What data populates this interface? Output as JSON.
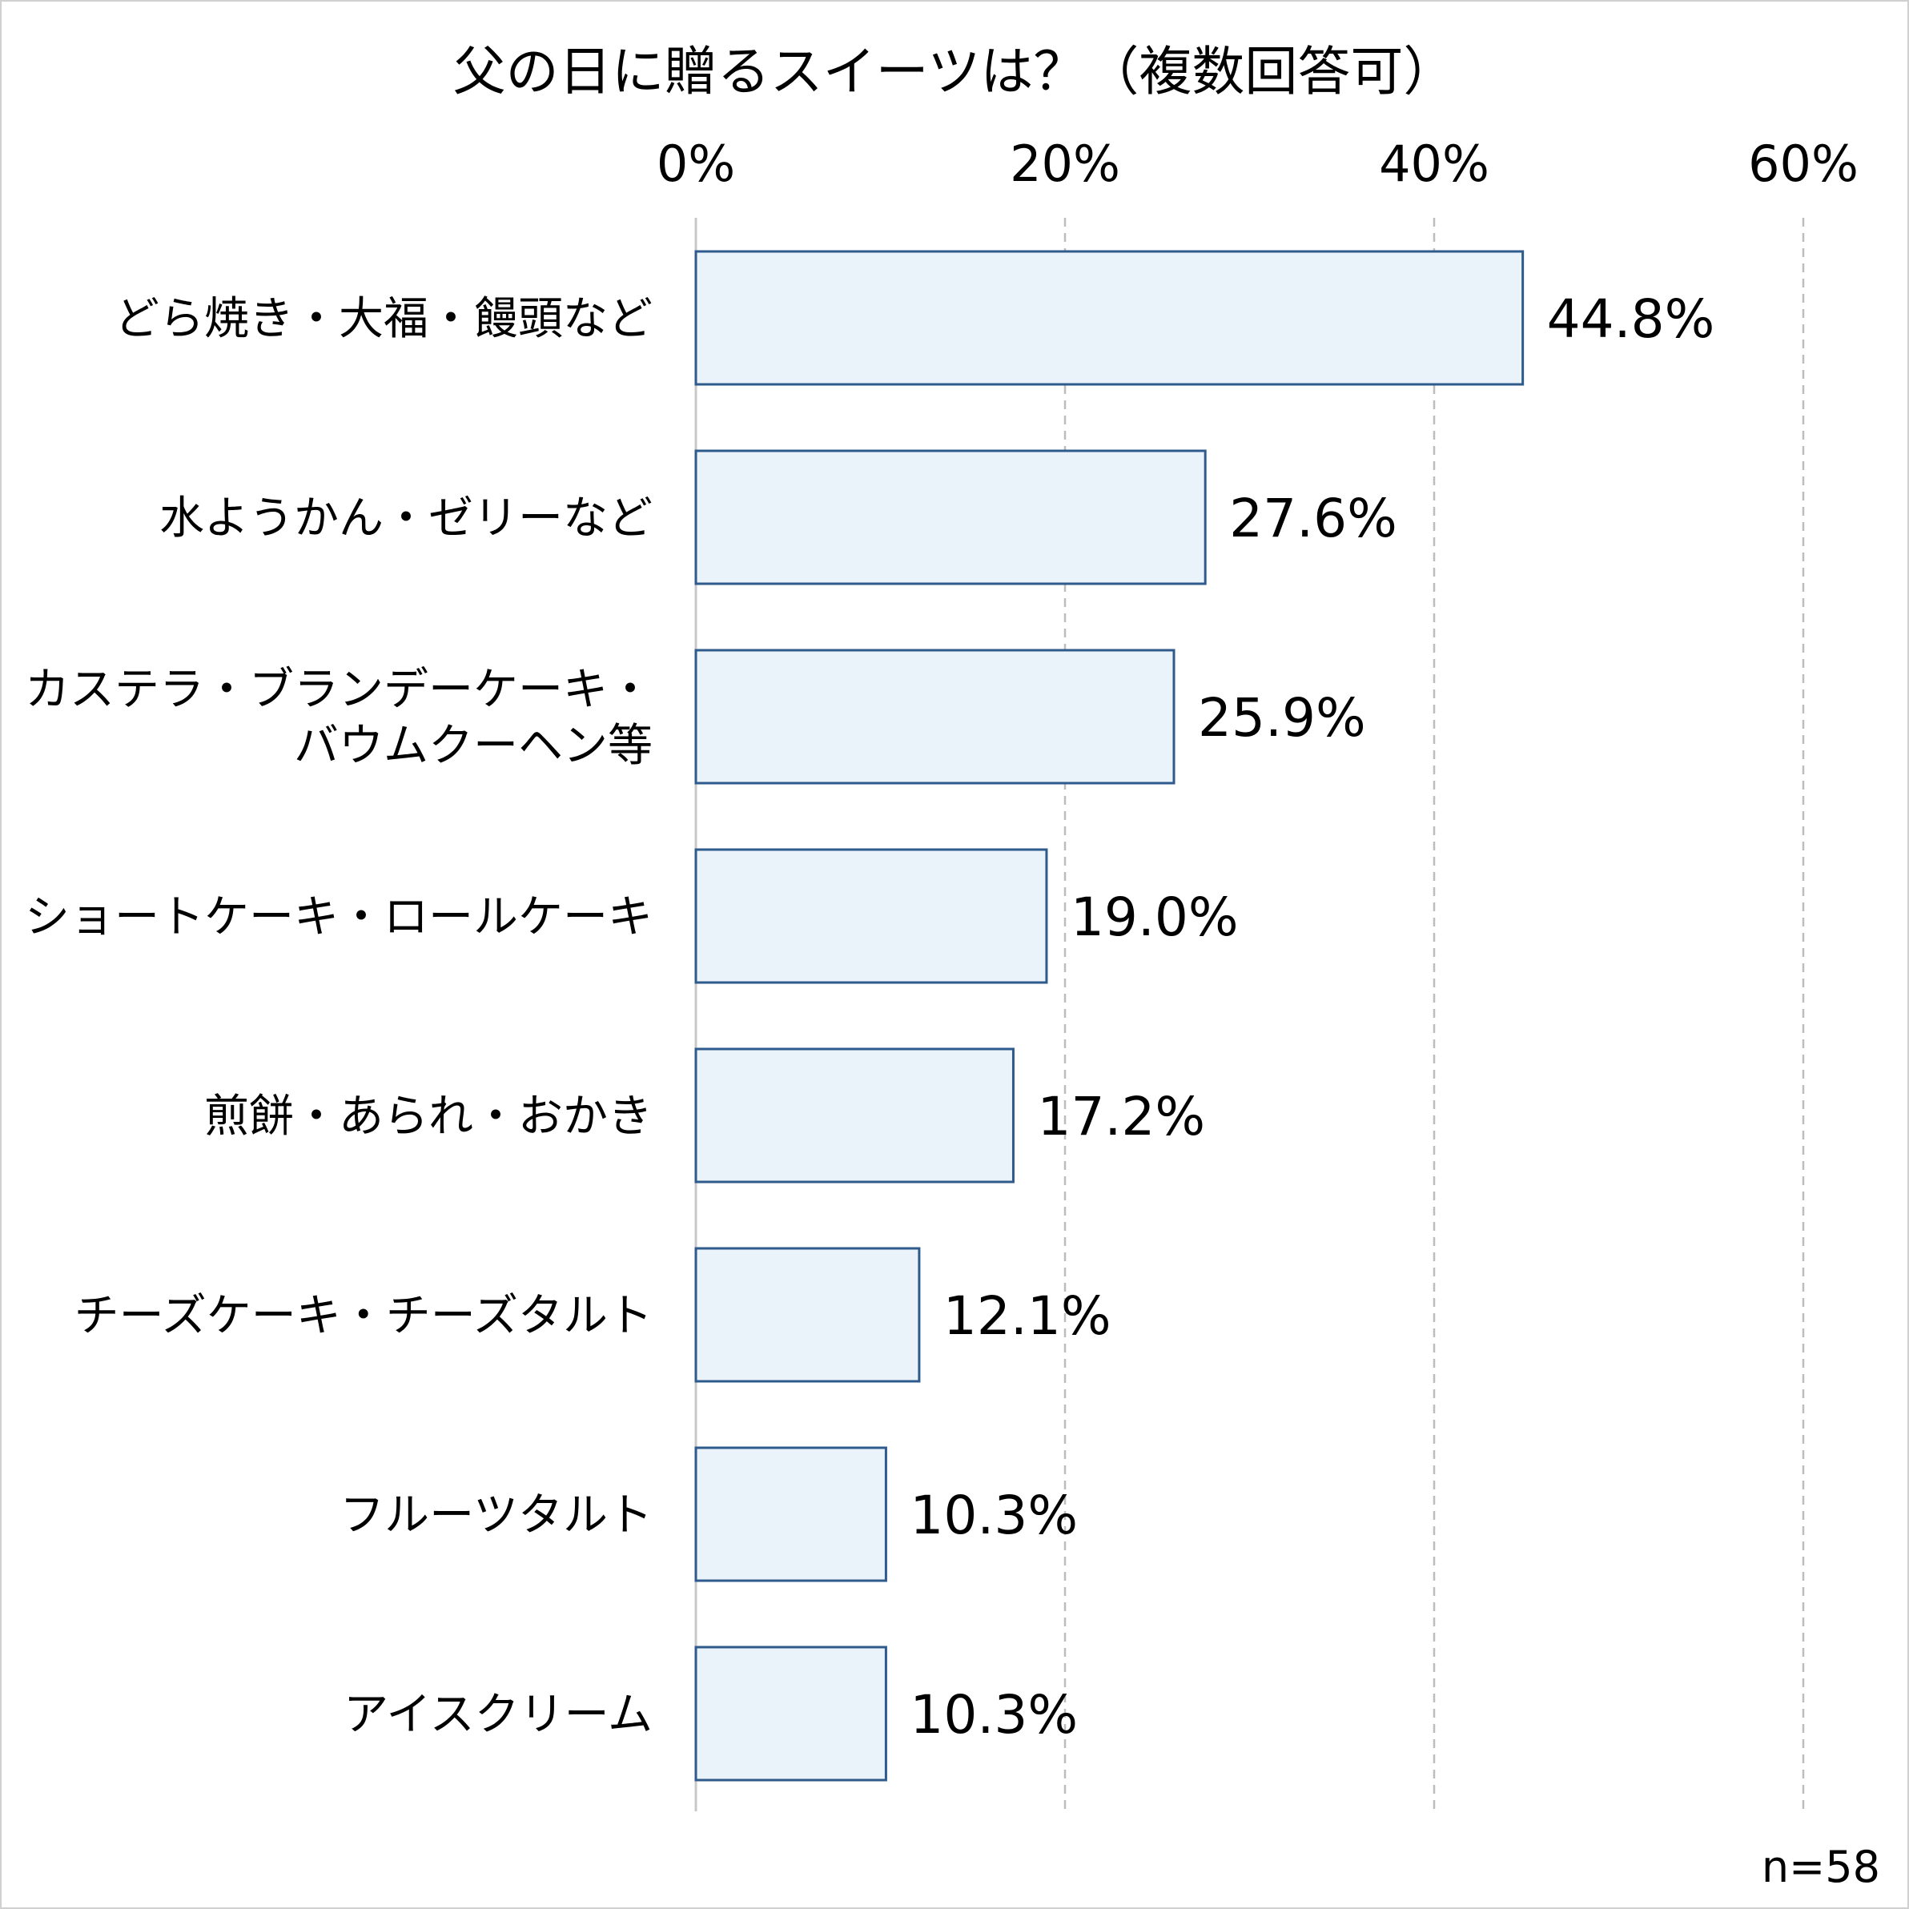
{
  "chart_data": {
    "type": "bar",
    "orientation": "horizontal",
    "title": "父の日に贈るスイーツは？（複数回答可）",
    "xlim": [
      0,
      60
    ],
    "ticks": [
      "0%",
      "20%",
      "40%",
      "60%"
    ],
    "tick_values": [
      0,
      20,
      40,
      60
    ],
    "grid": true,
    "categories": [
      [
        "どら焼き・大福・饅頭など"
      ],
      [
        "水ようかん・ゼリーなど"
      ],
      [
        "カステラ・ブランデーケーキ・",
        "バウムクーヘン等"
      ],
      [
        "ショートケーキ・ロールケーキ"
      ],
      [
        "煎餅・あられ・おかき"
      ],
      [
        "チーズケーキ・チーズタルト"
      ],
      [
        "フルーツタルト"
      ],
      [
        "アイスクリーム"
      ]
    ],
    "values": [
      44.8,
      27.6,
      25.9,
      19.0,
      17.2,
      12.1,
      10.3,
      10.3
    ],
    "value_labels": [
      "44.8%",
      "27.6%",
      "25.9%",
      "19.0%",
      "17.2%",
      "12.1%",
      "10.3%",
      "10.3%"
    ],
    "note": "n=58",
    "colors": {
      "bar_fill": "#eaf2fa",
      "bar_stroke": "#2e5a8c",
      "grid": "#bdbdbd",
      "axis": "#c8c8c8"
    }
  }
}
